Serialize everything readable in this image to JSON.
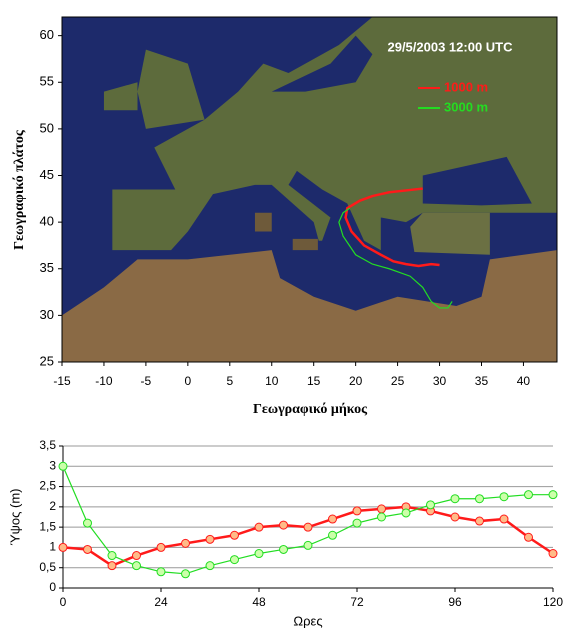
{
  "chart_data": [
    {
      "type": "line",
      "annotation": "29/5/2003 12:00 UTC",
      "xlabel": "Γεωγραφικό μήκος",
      "ylabel": "Γεωγραφικό πλάτος",
      "xlim": [
        -15,
        44
      ],
      "xticks": [
        -15,
        -10,
        -5,
        0,
        5,
        10,
        15,
        20,
        25,
        30,
        35,
        40
      ],
      "ylim": [
        25,
        62
      ],
      "yticks": [
        25,
        30,
        35,
        40,
        45,
        50,
        55,
        60
      ],
      "series": [
        {
          "name": "1000 m",
          "color": "#ff1a1a",
          "x": [
            30,
            29,
            27.5,
            26,
            24.5,
            23,
            21,
            19.5,
            18.8,
            19,
            20.5,
            22,
            24,
            26,
            28
          ],
          "values": [
            35.4,
            35.5,
            35.3,
            35.5,
            35.8,
            36.5,
            37.5,
            39,
            40.5,
            41.5,
            42.3,
            42.8,
            43.2,
            43.4,
            43.6
          ]
        },
        {
          "name": "3000 m",
          "color": "#22dd22",
          "x": [
            31.5,
            31,
            30,
            29,
            28,
            26.5,
            24,
            22,
            20,
            18.5,
            18,
            18.5,
            19.3
          ],
          "values": [
            31.5,
            30.8,
            30.8,
            31.5,
            33,
            34.2,
            35,
            35.5,
            36.5,
            38.5,
            40,
            41,
            41.5
          ]
        }
      ]
    },
    {
      "type": "line",
      "xlabel": "Ωρες",
      "ylabel": "Ύψος (m)",
      "xlim": [
        0,
        120
      ],
      "xticks": [
        0,
        24,
        48,
        72,
        96,
        120
      ],
      "ylim": [
        0,
        3.5
      ],
      "yticks": [
        0,
        {
          "value": 0.5,
          "label": "0,5"
        },
        1,
        {
          "value": 1.5,
          "label": "1,5"
        },
        2,
        {
          "value": 2.5,
          "label": "2,5"
        },
        3,
        {
          "value": 3.5,
          "label": "3,5"
        }
      ],
      "grid": true,
      "x": [
        0,
        6,
        12,
        18,
        24,
        30,
        36,
        42,
        48,
        54,
        60,
        66,
        72,
        78,
        84,
        90,
        96,
        102,
        108,
        114,
        120
      ],
      "series": [
        {
          "color": "#ff1a1a",
          "marker_fill": "#ffbb88",
          "values": [
            1.0,
            0.95,
            0.55,
            0.8,
            1.0,
            1.1,
            1.2,
            1.3,
            1.5,
            1.55,
            1.5,
            1.7,
            1.9,
            1.95,
            2.0,
            1.9,
            1.75,
            1.65,
            1.7,
            1.25,
            0.85
          ]
        },
        {
          "color": "#22dd22",
          "marker_fill": "#ccffaa",
          "values": [
            3.0,
            1.6,
            0.8,
            0.55,
            0.4,
            0.35,
            0.55,
            0.7,
            0.85,
            0.95,
            1.05,
            1.3,
            1.6,
            1.75,
            1.85,
            2.05,
            2.2,
            2.2,
            2.25,
            2.3,
            2.3
          ]
        }
      ]
    }
  ]
}
